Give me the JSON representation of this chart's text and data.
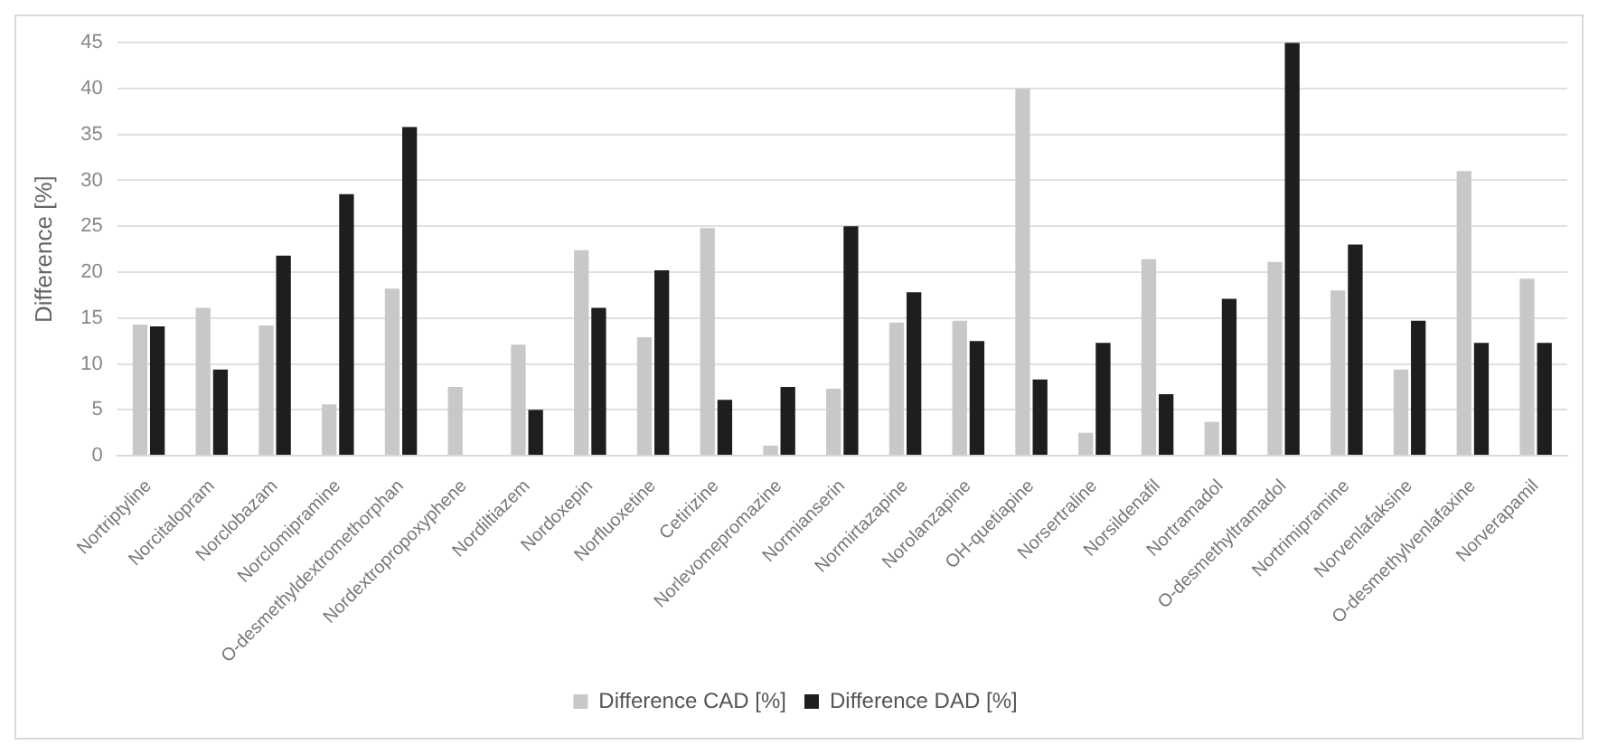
{
  "chart_data": {
    "type": "bar",
    "ylabel": "Difference [%]",
    "categories": [
      "Nortriptyline",
      "Norcitalopram",
      "Norclobazam",
      "Norclomipramine",
      "O-desmethyldextromethorphan",
      "Nordextropropoxyphene",
      "Nordiltiazem",
      "Nordoxepin",
      "Norfluoxetine",
      "Cetirizine",
      "Norlevomepromazine",
      "Normianserin",
      "Normirtazapine",
      "Norolanzapine",
      "OH-quetiapine",
      "Norsertraline",
      "Norsildenafil",
      "Nortramadol",
      "O-desmethyltramadol",
      "Nortrimipramine",
      "Norvenlafaksine",
      "O-desmethylvenlafaxine",
      "Norverapamil"
    ],
    "series": [
      {
        "name": "Difference CAD [%]",
        "color": "#c8c8c8",
        "values": [
          14.3,
          16.1,
          14.2,
          5.6,
          18.2,
          7.5,
          12.1,
          22.4,
          12.9,
          24.8,
          1.1,
          7.3,
          14.5,
          14.7,
          40,
          2.5,
          21.4,
          3.7,
          21.1,
          18,
          9.4,
          31,
          19.3
        ]
      },
      {
        "name": "Difference DAD [%]",
        "color": "#1e1e1e",
        "values": [
          14.1,
          9.4,
          21.8,
          28.5,
          35.8,
          null,
          5,
          16.1,
          20.2,
          6.1,
          7.5,
          25,
          17.8,
          12.5,
          8.3,
          12.3,
          6.7,
          17.1,
          45,
          23,
          14.7,
          12.3,
          12.3
        ]
      }
    ],
    "ylim": [
      0,
      45
    ],
    "yticks": [
      0,
      5,
      10,
      15,
      20,
      25,
      30,
      35,
      40,
      45
    ],
    "grid": "y",
    "legend": "bottom"
  }
}
